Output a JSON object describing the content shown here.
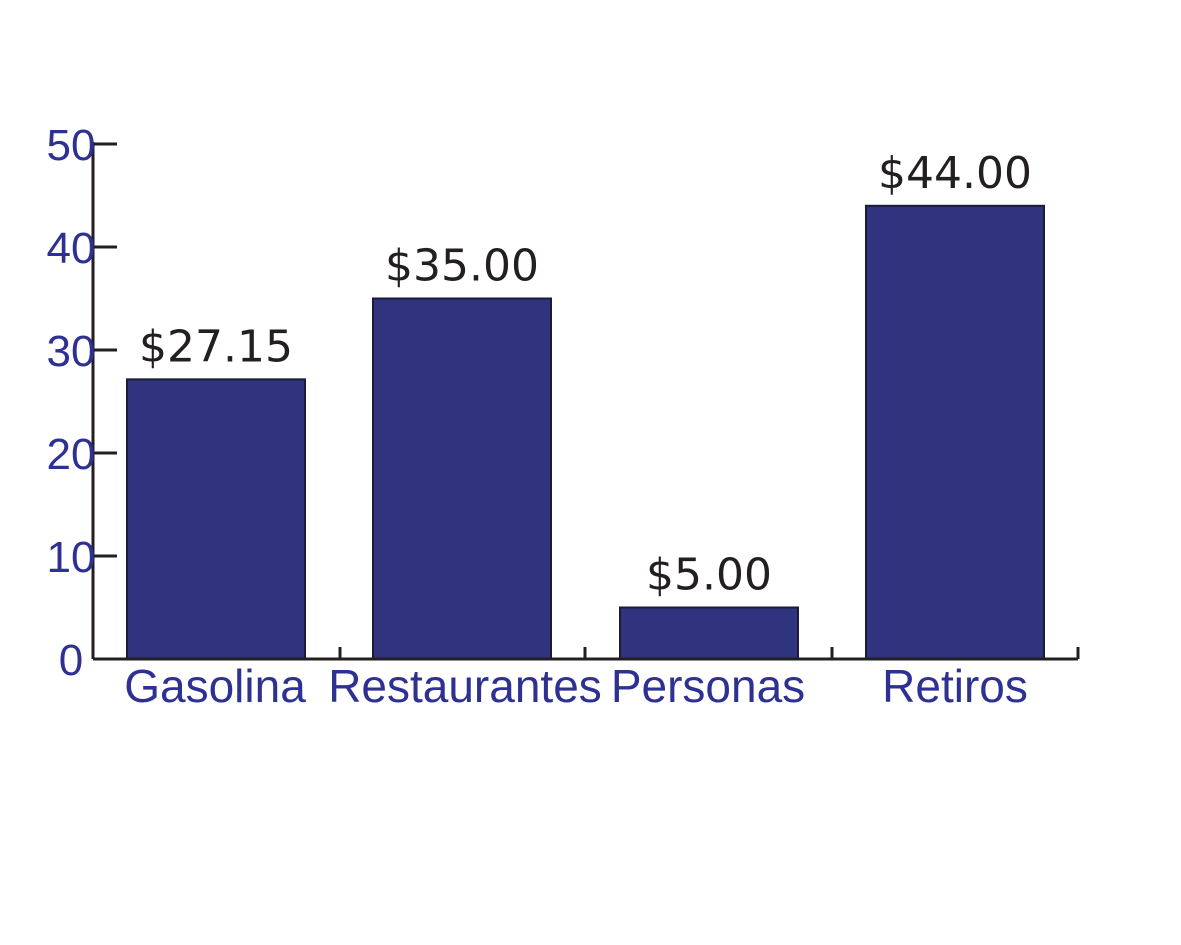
{
  "chart_data": {
    "type": "bar",
    "categories": [
      "Gasolina",
      "Restaurantes",
      "Personas",
      "Retiros"
    ],
    "values": [
      27.15,
      35.0,
      5.0,
      44.0
    ],
    "data_labels": [
      "$27.15",
      "$35.00",
      "$5.00",
      "$44.00"
    ],
    "y_ticks": [
      0,
      10,
      20,
      30,
      40,
      50
    ],
    "ylim": [
      0,
      50
    ],
    "title": "",
    "xlabel": "",
    "ylabel": "",
    "grid": false,
    "legend": "none",
    "colors": {
      "bar": "#30337d",
      "bar_stroke": "#1a1a3a",
      "axis": "#231f20",
      "tick_label": "#2e3192",
      "category_label": "#2e3192",
      "data_label": "#231f20"
    }
  }
}
